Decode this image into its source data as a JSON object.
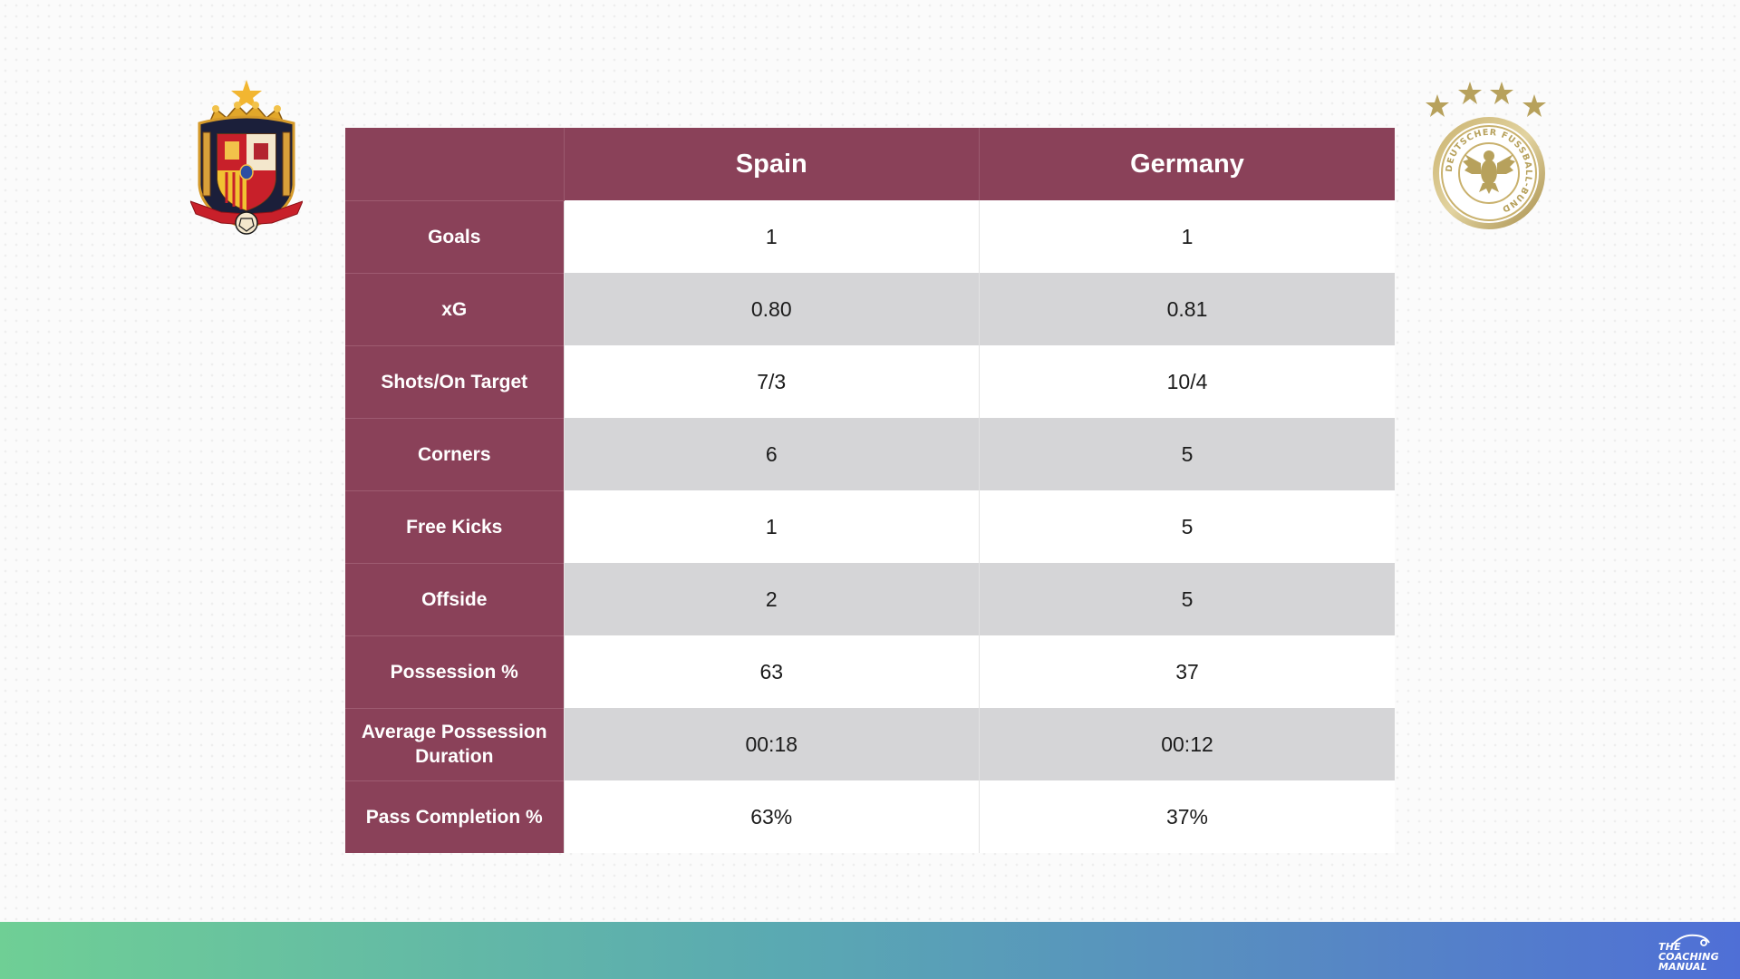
{
  "teams": {
    "home": {
      "name": "Spain"
    },
    "away": {
      "name": "Germany"
    }
  },
  "crests": {
    "home_icon": "spain-federation-crest-icon",
    "away_icon": "german-football-association-crest-icon",
    "away_ring_text": "DEUTSCHER FUSSBALL-BUND"
  },
  "table": {
    "header": {
      "corner": ""
    },
    "rows": [
      {
        "label": "Goals",
        "home": "1",
        "away": "1"
      },
      {
        "label": "xG",
        "home": "0.80",
        "away": "0.81"
      },
      {
        "label": "Shots/On Target",
        "home": "7/3",
        "away": "10/4"
      },
      {
        "label": "Corners",
        "home": "6",
        "away": "5"
      },
      {
        "label": "Free Kicks",
        "home": "1",
        "away": "5"
      },
      {
        "label": "Offside",
        "home": "2",
        "away": "5"
      },
      {
        "label": "Possession %",
        "home": "63",
        "away": "37"
      },
      {
        "label": "Average Possession Duration",
        "home": "00:18",
        "away": "00:12"
      },
      {
        "label": "Pass Completion %",
        "home": "63%",
        "away": "37%"
      }
    ]
  },
  "footer": {
    "brand_text": "THE\nCOACHING\nMANUAL",
    "brand_icon": "whistle-icon"
  },
  "colors": {
    "header_bg": "#8a4159",
    "row_alt_bg": "#d5d5d7",
    "footer_gradient_start": "#6fcf95",
    "footer_gradient_end": "#4f6fd6"
  }
}
